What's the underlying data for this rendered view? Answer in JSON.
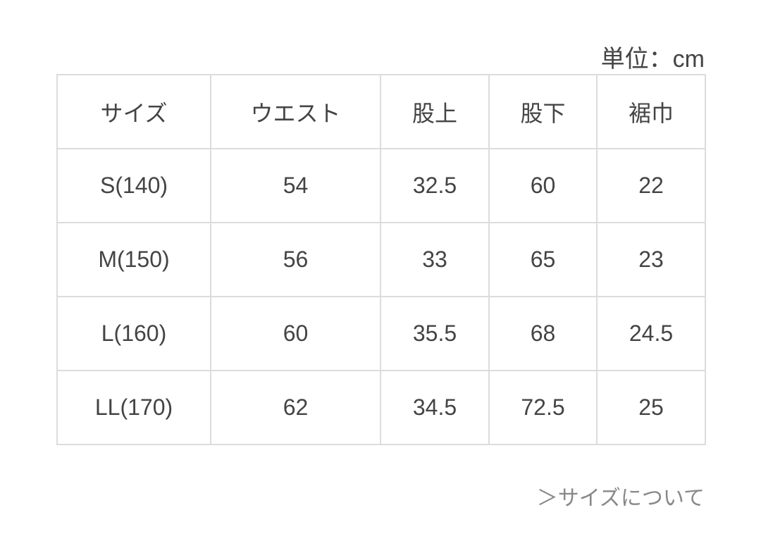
{
  "unit_label": "単位：cm",
  "table": {
    "headers": [
      "サイズ",
      "ウエスト",
      "股上",
      "股下",
      "裾巾"
    ],
    "rows": [
      [
        "S(140)",
        "54",
        "32.5",
        "60",
        "22"
      ],
      [
        "M(150)",
        "56",
        "33",
        "65",
        "23"
      ],
      [
        "L(160)",
        "60",
        "35.5",
        "68",
        "24.5"
      ],
      [
        "LL(170)",
        "62",
        "34.5",
        "72.5",
        "25"
      ]
    ]
  },
  "size_link": "＞サイズについて"
}
